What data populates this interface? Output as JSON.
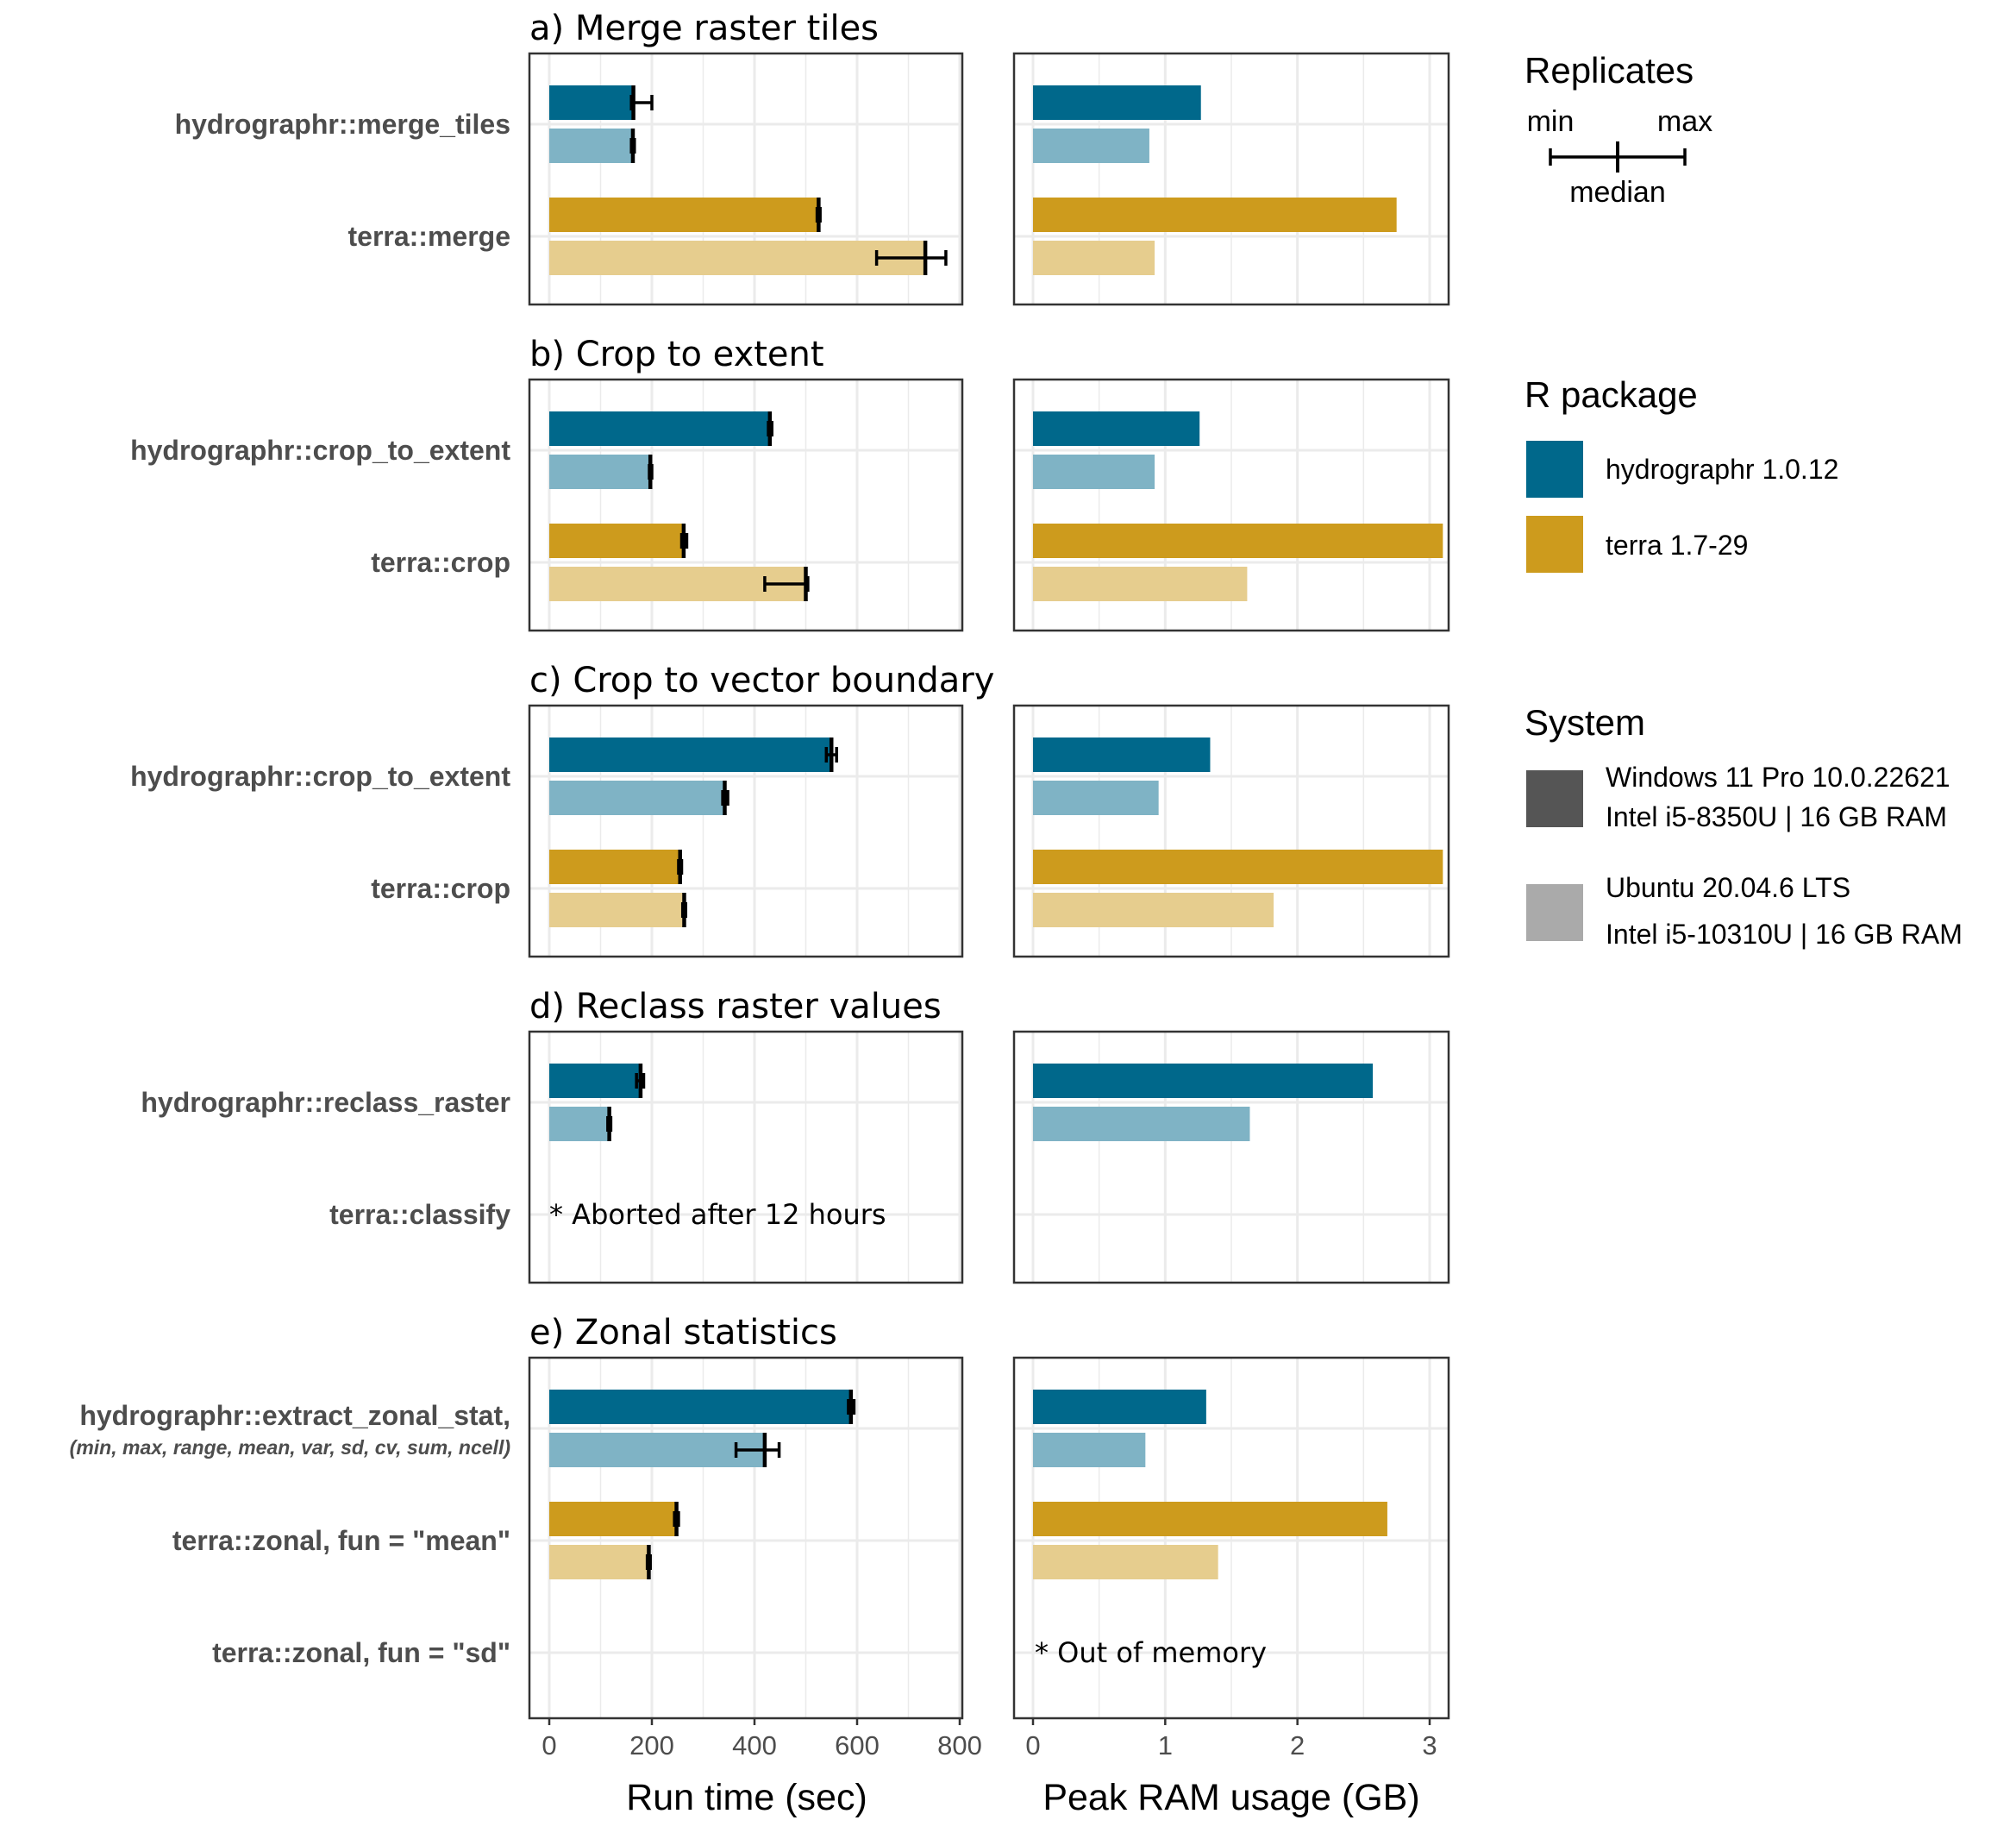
{
  "colors": {
    "hydrographr_windows": "#00688b",
    "hydrographr_ubuntu": "#7fb3c5",
    "terra_windows": "#cd9b1d",
    "terra_ubuntu": "#e6cd8e",
    "system_windows": "#555555",
    "system_ubuntu": "#aaaaaa",
    "grid": "#ebebeb",
    "panel_border": "#333333"
  },
  "axes": {
    "runtime": {
      "title": "Run time (sec)",
      "lim": [
        0,
        800
      ],
      "ticks": [
        0,
        200,
        400,
        600,
        800
      ],
      "tick_labels": [
        "0",
        "200",
        "400",
        "600",
        "800"
      ]
    },
    "ram": {
      "title": "Peak RAM usage (GB)",
      "lim": [
        0,
        3
      ],
      "ticks": [
        0,
        1,
        2,
        3
      ],
      "tick_labels": [
        "0",
        "1",
        "2",
        "3"
      ]
    }
  },
  "legend": {
    "replicates": {
      "title": "Replicates",
      "min": "min",
      "max": "max",
      "median": "median"
    },
    "package": {
      "title": "R package",
      "items": [
        {
          "label": "hydrographr 1.0.12",
          "color": "#00688b"
        },
        {
          "label": "terra 1.7-29",
          "color": "#cd9b1d"
        }
      ]
    },
    "system": {
      "title": "System",
      "items": [
        {
          "line1": "Windows 11 Pro 10.0.22621",
          "line2": "Intel i5-8350U | 16 GB RAM",
          "color": "#555555"
        },
        {
          "line1": "Ubuntu 20.04.6 LTS",
          "line2": "Intel i5-10310U | 16 GB RAM",
          "color": "#aaaaaa"
        }
      ]
    }
  },
  "chart_data": {
    "type": "bar",
    "orientation": "horizontal",
    "series_key": [
      "hydrographr Windows",
      "hydrographr Ubuntu",
      "terra Windows",
      "terra Ubuntu"
    ],
    "panels": [
      {
        "title": "a) Merge raster tiles",
        "rows": [
          {
            "label": "hydrographr::merge_tiles",
            "package": "hydrographr",
            "windows": {
              "time": 164,
              "min": 160,
              "max": 200,
              "ram": 1.27
            },
            "ubuntu": {
              "time": 163,
              "min": 160,
              "max": 166,
              "ram": 0.88
            }
          },
          {
            "label": "terra::merge",
            "package": "terra",
            "windows": {
              "time": 525,
              "min": 522,
              "max": 528,
              "ram": 2.75
            },
            "ubuntu": {
              "time": 733,
              "min": 638,
              "max": 773,
              "ram": 0.92
            }
          }
        ]
      },
      {
        "title": "b) Crop to extent",
        "rows": [
          {
            "label": "hydrographr::crop_to_extent",
            "package": "hydrographr",
            "windows": {
              "time": 430,
              "min": 427,
              "max": 434,
              "ram": 1.26
            },
            "ubuntu": {
              "time": 197,
              "min": 195,
              "max": 200,
              "ram": 0.92
            }
          },
          {
            "label": "terra::crop",
            "package": "terra",
            "windows": {
              "time": 262,
              "min": 258,
              "max": 268,
              "ram": 3.1
            },
            "ubuntu": {
              "time": 500,
              "min": 420,
              "max": 504,
              "ram": 1.62
            }
          }
        ]
      },
      {
        "title": "c) Crop to vector boundary",
        "rows": [
          {
            "label": "hydrographr::crop_to_extent",
            "package": "hydrographr",
            "windows": {
              "time": 550,
              "min": 540,
              "max": 560,
              "ram": 1.34
            },
            "ubuntu": {
              "time": 342,
              "min": 338,
              "max": 348,
              "ram": 0.95
            }
          },
          {
            "label": "terra::crop",
            "package": "terra",
            "windows": {
              "time": 255,
              "min": 252,
              "max": 258,
              "ram": 3.1
            },
            "ubuntu": {
              "time": 263,
              "min": 260,
              "max": 266,
              "ram": 1.82
            }
          }
        ]
      },
      {
        "title": "d) Reclass raster values",
        "runtime_note": "* Aborted after 12 hours",
        "rows": [
          {
            "label": "hydrographr::reclass_raster",
            "package": "hydrographr",
            "windows": {
              "time": 178,
              "min": 170,
              "max": 184,
              "ram": 2.57
            },
            "ubuntu": {
              "time": 117,
              "min": 114,
              "max": 120,
              "ram": 1.64
            }
          },
          {
            "label": "terra::classify",
            "package": "terra",
            "windows": null,
            "ubuntu": null
          }
        ]
      },
      {
        "title": "e) Zonal statistics",
        "ram_note": "* Out of memory",
        "rows": [
          {
            "label": "hydrographr::extract_zonal_stat,",
            "sublabel": "(min, max, range, mean, var, sd, cv, sum, ncell)",
            "package": "hydrographr",
            "windows": {
              "time": 588,
              "min": 583,
              "max": 594,
              "ram": 1.31
            },
            "ubuntu": {
              "time": 420,
              "min": 364,
              "max": 448,
              "ram": 0.85
            }
          },
          {
            "label": "terra::zonal, fun = \"mean\"",
            "package": "terra",
            "windows": {
              "time": 248,
              "min": 244,
              "max": 252,
              "ram": 2.68
            },
            "ubuntu": {
              "time": 194,
              "min": 191,
              "max": 197,
              "ram": 1.4
            }
          },
          {
            "label": "terra::zonal, fun = \"sd\"",
            "package": "terra",
            "windows": null,
            "ubuntu": null
          }
        ]
      }
    ]
  }
}
